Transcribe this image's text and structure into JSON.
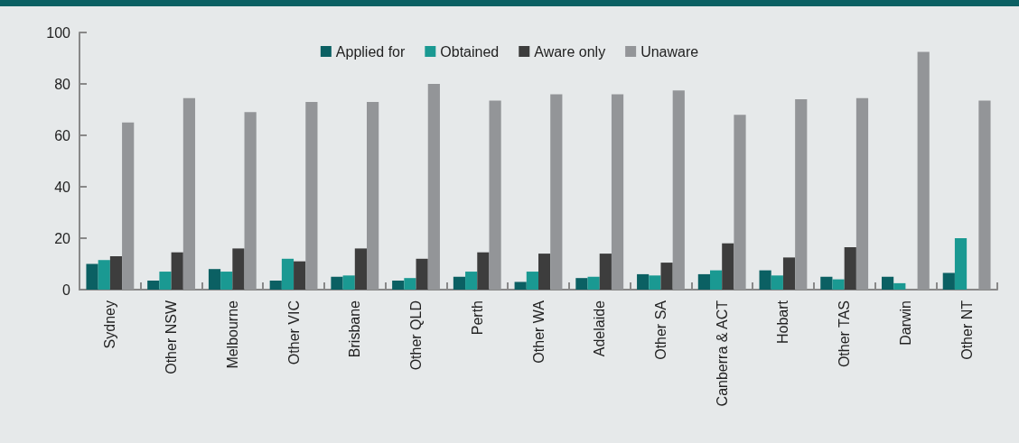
{
  "chart_data": {
    "type": "bar",
    "categories": [
      "Sydney",
      "Other NSW",
      "Melbourne",
      "Other VIC",
      "Brisbane",
      "Other QLD",
      "Perth",
      "Other WA",
      "Adelaide",
      "Other SA",
      "Canberra & ACT",
      "Hobart",
      "Other TAS",
      "Darwin",
      "Other NT"
    ],
    "series": [
      {
        "name": "Applied for",
        "color": "#0b6063",
        "values": [
          10,
          3.5,
          8,
          3.5,
          5,
          3.5,
          5,
          3,
          4.5,
          6,
          6,
          7.5,
          5,
          5,
          6.5
        ]
      },
      {
        "name": "Obtained",
        "color": "#1a9992",
        "values": [
          11.5,
          7,
          7,
          12,
          5.5,
          4.5,
          7,
          7,
          5,
          5.5,
          7.5,
          5.5,
          4,
          2.5,
          20
        ]
      },
      {
        "name": "Aware only",
        "color": "#3d3d3d",
        "values": [
          13,
          14.5,
          16,
          11,
          16,
          12,
          14.5,
          14,
          14,
          10.5,
          18,
          12.5,
          16.5,
          null,
          null
        ]
      },
      {
        "name": "Unaware",
        "color": "#939598",
        "values": [
          65,
          74.5,
          69,
          73,
          73,
          80,
          73.5,
          76,
          76,
          77.5,
          68,
          74,
          74.5,
          92.5,
          73.5
        ]
      }
    ],
    "ylim": [
      0,
      100
    ],
    "yticks": [
      0,
      20,
      40,
      60,
      80,
      100
    ],
    "grid": false,
    "legend": "top"
  }
}
